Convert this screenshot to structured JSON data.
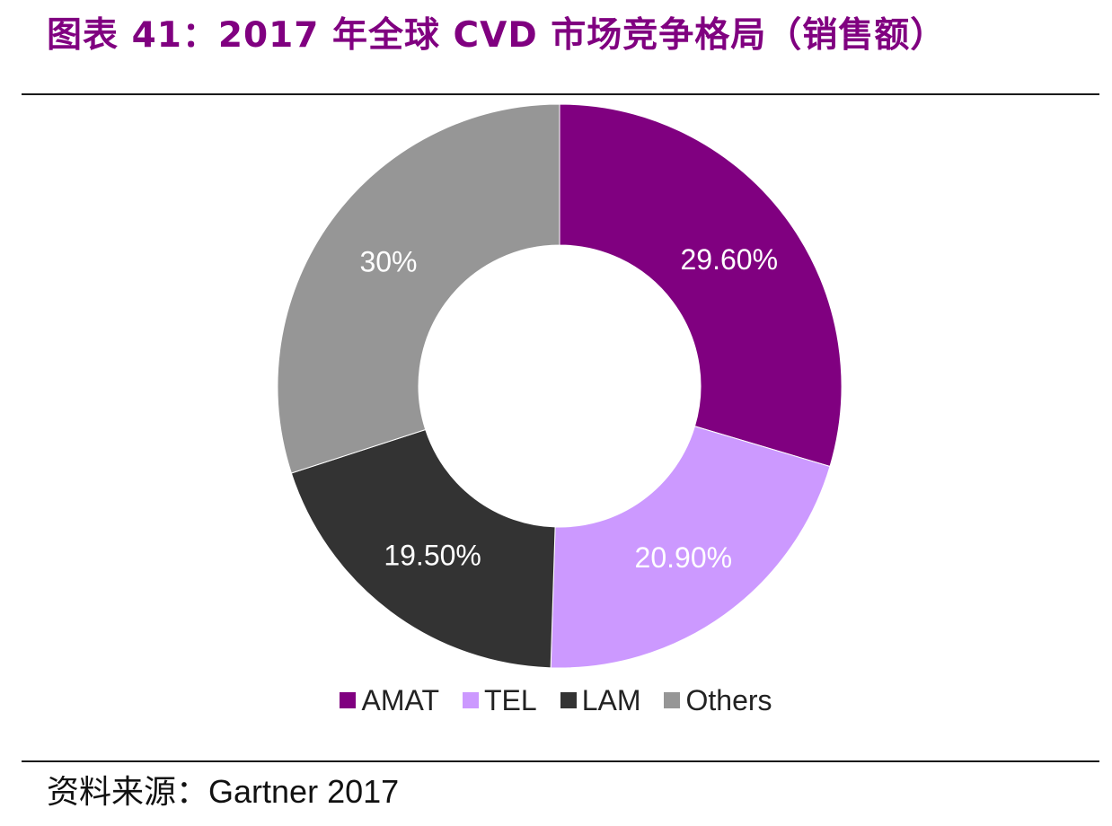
{
  "title": "图表 41：2017 年全球 CVD 市场竞争格局（销售额）",
  "source": {
    "label": "资料来源：",
    "value": "Gartner 2017"
  },
  "colors": {
    "title": "#800080",
    "AMAT": "#800080",
    "TEL": "#CC99FF",
    "LAM": "#333333",
    "Others": "#969696"
  },
  "chart_data": {
    "type": "pie",
    "variant": "donut",
    "categories": [
      "AMAT",
      "TEL",
      "LAM",
      "Others"
    ],
    "values": [
      29.6,
      20.9,
      19.5,
      30.0
    ],
    "data_labels": [
      "29.60%",
      "20.90%",
      "19.50%",
      "30%"
    ],
    "unit": "%",
    "legend": {
      "position": "bottom",
      "entries": [
        "AMAT",
        "TEL",
        "LAM",
        "Others"
      ]
    }
  }
}
